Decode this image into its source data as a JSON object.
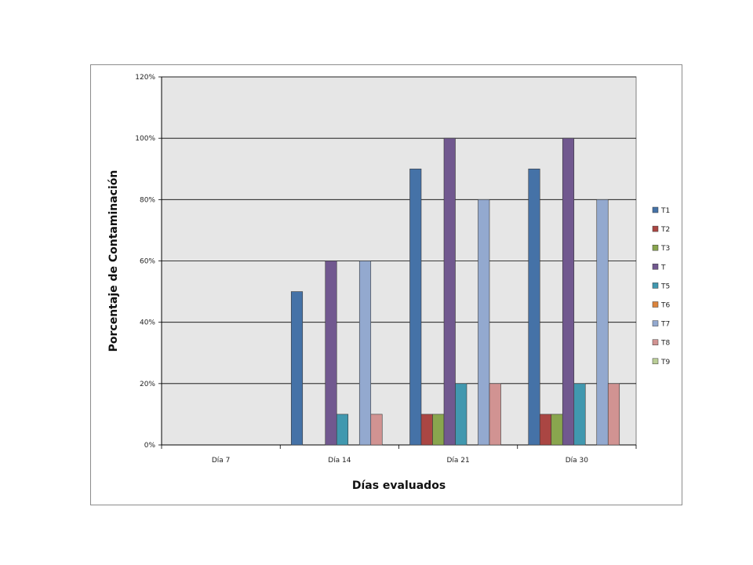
{
  "chart_data": {
    "type": "bar",
    "title": "",
    "xlabel": "Días evaluados",
    "ylabel": "Porcentaje de Contaminación",
    "categories": [
      "Día 7",
      "Día 14",
      "Día 21",
      "Día 30"
    ],
    "y_ticks": [
      "0%",
      "20%",
      "40%",
      "60%",
      "80%",
      "100%",
      "120%"
    ],
    "ylim": [
      0,
      120
    ],
    "grid": true,
    "legend_position": "right",
    "series": [
      {
        "name": "T1",
        "color": "#4572A7",
        "values": [
          0,
          50,
          90,
          90
        ]
      },
      {
        "name": "T2",
        "color": "#AA4643",
        "values": [
          0,
          0,
          10,
          10
        ]
      },
      {
        "name": "T3",
        "color": "#89A54E",
        "values": [
          0,
          0,
          10,
          10
        ]
      },
      {
        "name": "T",
        "color": "#71588F",
        "values": [
          0,
          60,
          100,
          100
        ]
      },
      {
        "name": "T5",
        "color": "#4198AF",
        "values": [
          0,
          10,
          20,
          20
        ]
      },
      {
        "name": "T6",
        "color": "#DB843D",
        "values": [
          0,
          0,
          0,
          0
        ]
      },
      {
        "name": "T7",
        "color": "#93A9CF",
        "values": [
          0,
          60,
          80,
          80
        ]
      },
      {
        "name": "T8",
        "color": "#D19392",
        "values": [
          0,
          10,
          20,
          20
        ]
      },
      {
        "name": "T9",
        "color": "#B9CD96",
        "values": [
          0,
          0,
          0,
          0
        ]
      }
    ]
  }
}
